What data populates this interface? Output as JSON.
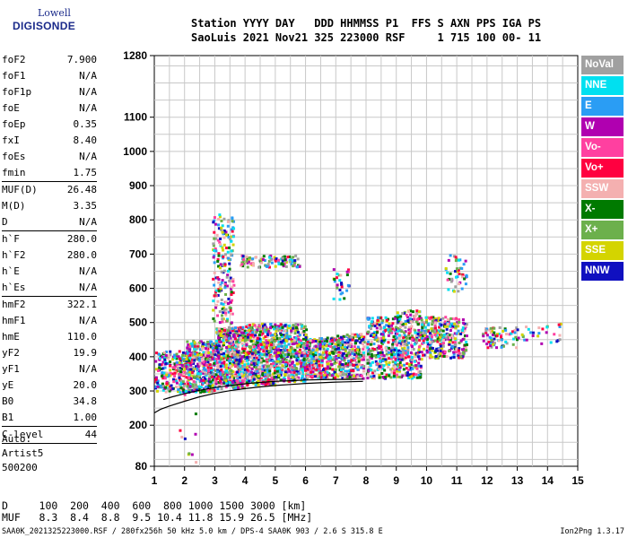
{
  "logo": {
    "line1": "Lowell",
    "line2": "DIGISONDE"
  },
  "header": {
    "line1": "Station YYYY DAY   DDD HHMMSS P1  FFS S AXN PPS IGA PS",
    "line2": "SaoLuis 2021 Nov21 325 223000 RSF     1 715 100 00- 11"
  },
  "params": [
    {
      "k": "foF2",
      "v": "7.900"
    },
    {
      "k": "foF1",
      "v": "N/A"
    },
    {
      "k": "foF1p",
      "v": "N/A"
    },
    {
      "k": "foE",
      "v": "N/A"
    },
    {
      "k": "foEp",
      "v": "0.35"
    },
    {
      "k": "fxI",
      "v": "8.40"
    },
    {
      "k": "foEs",
      "v": "N/A"
    },
    {
      "k": "fmin",
      "v": "1.75",
      "sep": true
    },
    {
      "k": "MUF(D)",
      "v": "26.48"
    },
    {
      "k": "M(D)",
      "v": "3.35"
    },
    {
      "k": "D",
      "v": "N/A",
      "sep": true
    },
    {
      "k": "h`F",
      "v": "280.0"
    },
    {
      "k": "h`F2",
      "v": "280.0"
    },
    {
      "k": "h`E",
      "v": "N/A"
    },
    {
      "k": "h`Es",
      "v": "N/A",
      "sep": true
    },
    {
      "k": "hmF2",
      "v": "322.1"
    },
    {
      "k": "hmF1",
      "v": "N/A"
    },
    {
      "k": "hmE",
      "v": "110.0"
    },
    {
      "k": "yF2",
      "v": "19.9"
    },
    {
      "k": "yF1",
      "v": "N/A"
    },
    {
      "k": "yE",
      "v": "20.0"
    },
    {
      "k": "B0",
      "v": "34.8"
    },
    {
      "k": "B1",
      "v": "1.00",
      "sep": true
    },
    {
      "k": "C-level",
      "v": "44",
      "sep": true
    }
  ],
  "auto": {
    "line1": "Auto:",
    "line2": "Artist5",
    "line3": "500200"
  },
  "legend": [
    {
      "label": "NoVal",
      "color": "#a0a0a0"
    },
    {
      "label": "NNE",
      "color": "#00e0f0"
    },
    {
      "label": "E",
      "color": "#2a9df4"
    },
    {
      "label": "W",
      "color": "#b000b0"
    },
    {
      "label": "Vo-",
      "color": "#ff40a0"
    },
    {
      "label": "Vo+",
      "color": "#ff0040"
    },
    {
      "label": "SSW",
      "color": "#f4b0b0"
    },
    {
      "label": "X-",
      "color": "#007a00"
    },
    {
      "label": "X+",
      "color": "#6cb04c"
    },
    {
      "label": "SSE",
      "color": "#d4d400"
    },
    {
      "label": "NNW",
      "color": "#1010c0"
    }
  ],
  "bottom": {
    "row1": "D     100  200  400  600  800 1000 1500 3000 [km]",
    "row2": "MUF   8.3  8.4  8.8  9.5 10.4 11.8 15.9 26.5 [MHz]"
  },
  "footer": {
    "text": "SAA0K_2021325223000.RSF / 280fx256h 50 kHz 5.0 km / DPS-4 SAA0K 903 / 2.6 S 315.8 E",
    "version": "Ion2Png 1.3.17"
  },
  "chart_data": {
    "type": "scatter",
    "xlim": [
      1,
      15
    ],
    "ylim": [
      80,
      1280
    ],
    "x_ticks": [
      1,
      2,
      3,
      4,
      5,
      6,
      7,
      8,
      9,
      10,
      11,
      12,
      13,
      14,
      15
    ],
    "y_ticks": [
      80,
      200,
      300,
      400,
      500,
      600,
      700,
      800,
      900,
      1000,
      1100,
      1280
    ],
    "grid": true,
    "lines": [
      {
        "name": "",
        "x": [
          1.0,
          1.2,
          1.5,
          2.0,
          2.5,
          3.0,
          3.5,
          4.0,
          4.5,
          5.0,
          5.5,
          6.0,
          6.5,
          7.0,
          7.5,
          7.9
        ],
        "y": [
          236,
          246,
          256,
          270,
          283,
          293,
          301,
          307,
          312,
          316,
          319,
          322,
          324,
          326,
          327,
          328
        ],
        "color": "#000000"
      },
      {
        "name": "",
        "x": [
          1.3,
          1.6,
          2.0,
          2.5,
          3.0,
          3.5,
          4.0,
          4.5,
          5.0,
          5.5,
          6.0,
          6.5,
          7.0,
          7.5,
          7.9
        ],
        "y": [
          275,
          283,
          292,
          302,
          310,
          316,
          321,
          325,
          328,
          330,
          332,
          333,
          334,
          334,
          335
        ],
        "color": "#000000"
      }
    ],
    "clusters": [
      {
        "x": [
          1.0,
          2.0
        ],
        "y": [
          300,
          420
        ],
        "n": 220
      },
      {
        "x": [
          2.0,
          3.0
        ],
        "y": [
          300,
          450
        ],
        "n": 420
      },
      {
        "x": [
          3.0,
          4.0
        ],
        "y": [
          310,
          490
        ],
        "n": 520
      },
      {
        "x": [
          4.0,
          5.0
        ],
        "y": [
          320,
          500
        ],
        "n": 480
      },
      {
        "x": [
          5.0,
          6.0
        ],
        "y": [
          330,
          500
        ],
        "n": 420
      },
      {
        "x": [
          6.0,
          7.0
        ],
        "y": [
          340,
          460
        ],
        "n": 320
      },
      {
        "x": [
          7.0,
          7.9
        ],
        "y": [
          340,
          470
        ],
        "n": 260
      },
      {
        "x": [
          8.0,
          9.0
        ],
        "y": [
          340,
          520
        ],
        "n": 300
      },
      {
        "x": [
          9.0,
          9.8
        ],
        "y": [
          340,
          540
        ],
        "n": 260
      },
      {
        "x": [
          9.8,
          11.3
        ],
        "y": [
          400,
          520
        ],
        "n": 320
      },
      {
        "x": [
          11.8,
          13.0
        ],
        "y": [
          430,
          490
        ],
        "n": 70
      },
      {
        "x": [
          13.0,
          14.4
        ],
        "y": [
          440,
          500
        ],
        "n": 28
      },
      {
        "x": [
          2.9,
          3.6
        ],
        "y": [
          500,
          820
        ],
        "n": 180
      },
      {
        "x": [
          3.8,
          5.8
        ],
        "y": [
          665,
          700
        ],
        "n": 110
      },
      {
        "x": [
          6.8,
          7.4
        ],
        "y": [
          570,
          660
        ],
        "n": 30
      },
      {
        "x": [
          10.6,
          11.3
        ],
        "y": [
          590,
          700
        ],
        "n": 45
      },
      {
        "x": [
          1.8,
          2.4
        ],
        "y": [
          80,
          300
        ],
        "n": 12
      }
    ]
  }
}
